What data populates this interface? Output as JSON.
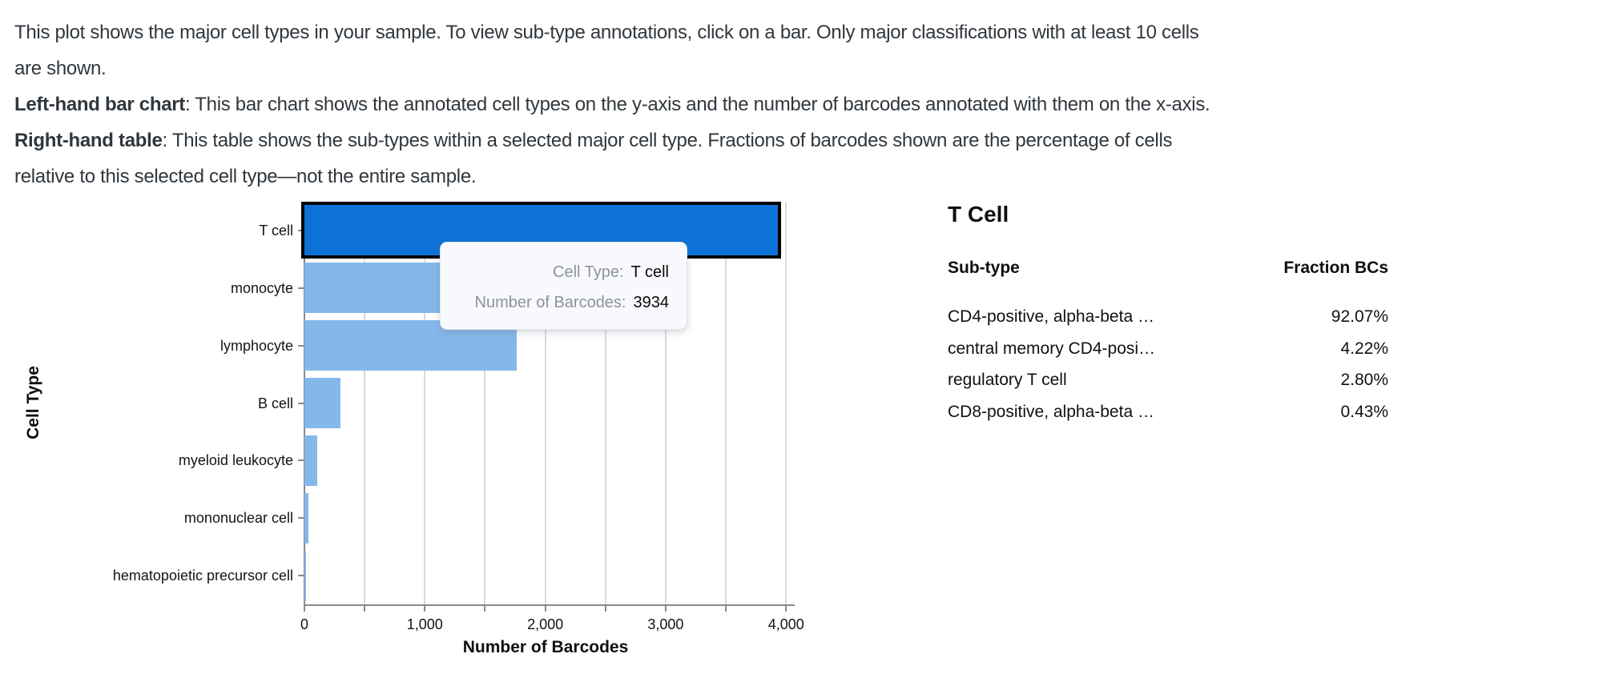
{
  "intro": {
    "lines": [
      {
        "text": "This plot shows the major cell types in your sample. To view sub-type annotations, click on a bar. Only major classifications with at least 10 cells"
      },
      {
        "text": "are shown."
      },
      {
        "bold": "Left-hand bar chart",
        "text": ": This bar chart shows the annotated cell types on the y-axis and the number of barcodes annotated with them on the x-axis."
      },
      {
        "bold": "Right-hand table",
        "text": ": This table shows the sub-types within a selected major cell type. Fractions of barcodes shown are the percentage of cells"
      },
      {
        "text": "relative to this selected cell type—not the entire sample."
      }
    ]
  },
  "chart_data": {
    "type": "bar",
    "orientation": "horizontal",
    "categories": [
      "T cell",
      "monocyte",
      "lymphocyte",
      "B cell",
      "myeloid leukocyte",
      "mononuclear cell",
      "hematopoietic precursor cell"
    ],
    "values": [
      3934,
      2700,
      1760,
      300,
      105,
      30,
      12
    ],
    "selected_category": "T cell",
    "selected_index": 0,
    "xlabel": "Number of Barcodes",
    "ylabel": "Cell Type",
    "xlim": [
      0,
      4025
    ],
    "gridline_every": 500,
    "xtick_labels": [
      "0",
      "1,000",
      "2,000",
      "3,000",
      "4,000"
    ],
    "grid": true,
    "bar_color": "#85b8ea",
    "selected_bar_color": "#0c72d8",
    "selected_bar_border": "#000000",
    "note": "monocyte bar right edge hidden behind tooltip; value estimated"
  },
  "tooltip": {
    "rows": [
      {
        "label": "Cell Type:",
        "value": "T cell"
      },
      {
        "label": "Number of Barcodes:",
        "value": "3934"
      }
    ]
  },
  "subtype_panel": {
    "title": "T Cell",
    "columns": [
      "Sub-type",
      "Fraction BCs"
    ],
    "rows": [
      {
        "subtype": "CD4-positive, alpha-beta …",
        "fraction": "92.07%"
      },
      {
        "subtype": "central memory CD4-posi…",
        "fraction": "4.22%"
      },
      {
        "subtype": "regulatory T cell",
        "fraction": "2.80%"
      },
      {
        "subtype": "CD8-positive, alpha-beta …",
        "fraction": "0.43%"
      }
    ]
  }
}
